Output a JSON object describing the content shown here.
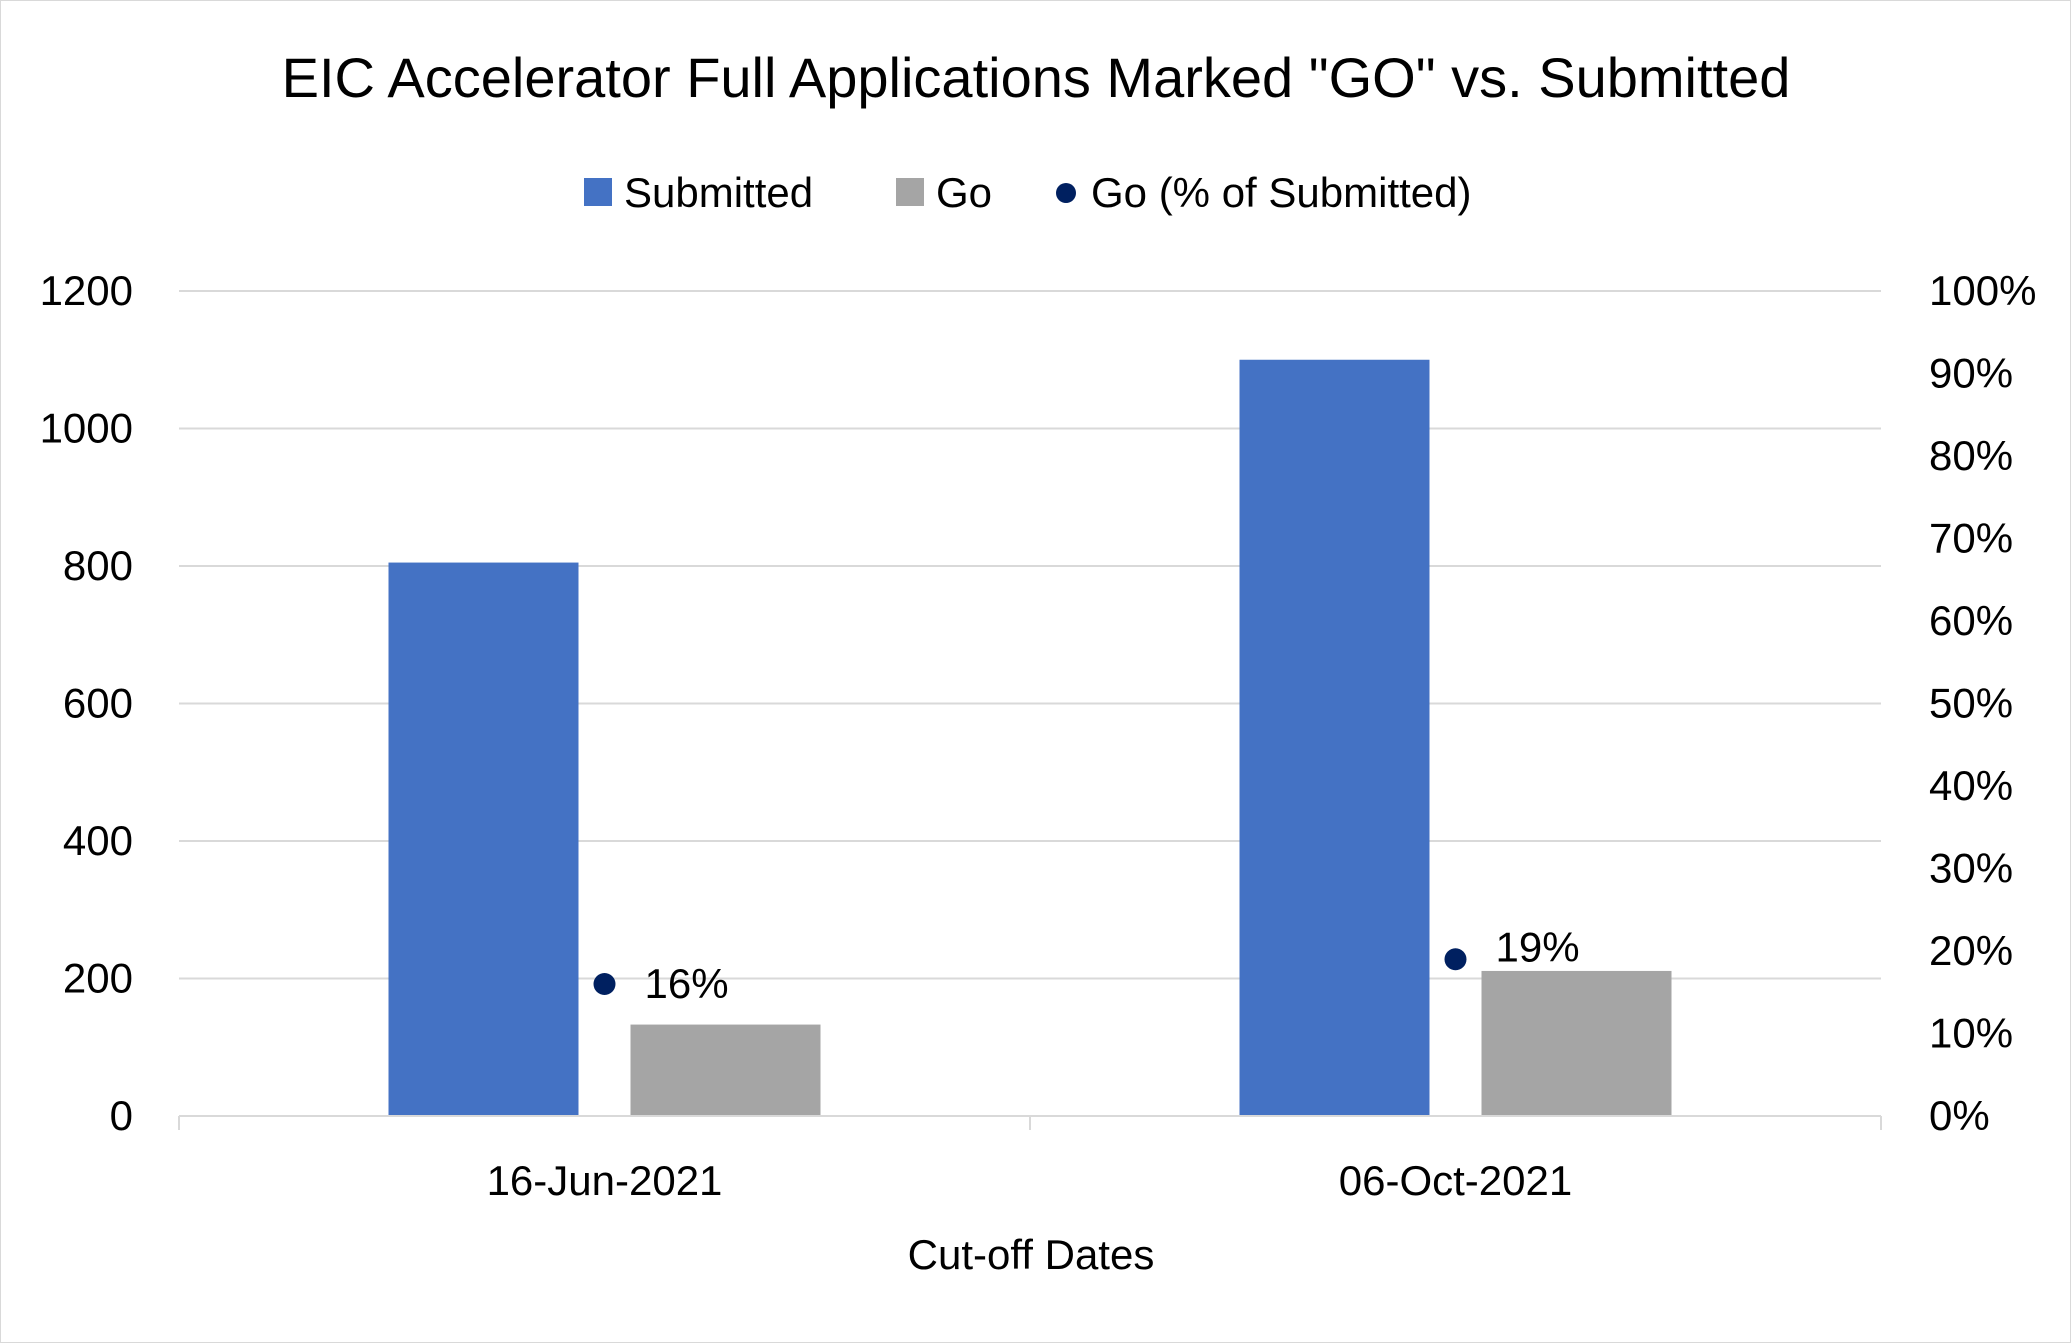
{
  "chart_data": {
    "type": "bar",
    "title": "EIC Accelerator Full Applications Marked \"GO\" vs. Submitted",
    "xlabel": "Cut-off Dates",
    "ylabel": "",
    "y2label": "",
    "categories": [
      "16-Jun-2021",
      "06-Oct-2021"
    ],
    "series": [
      {
        "name": "Submitted",
        "kind": "bar",
        "axis": "left",
        "color": "#4472C4",
        "values": [
          805,
          1100
        ]
      },
      {
        "name": "Go",
        "kind": "bar",
        "axis": "left",
        "color": "#A5A5A5",
        "values": [
          133,
          211
        ]
      },
      {
        "name": "Go (% of Submitted)",
        "kind": "point",
        "axis": "right",
        "color": "#002060",
        "values": [
          16,
          19
        ],
        "labels": [
          "16%",
          "19%"
        ]
      }
    ],
    "ylim": [
      0,
      1200
    ],
    "y_ticks": [
      "0",
      "200",
      "400",
      "600",
      "800",
      "1000",
      "1200"
    ],
    "y2lim": [
      0,
      100
    ],
    "y2_ticks": [
      "0%",
      "10%",
      "20%",
      "30%",
      "40%",
      "50%",
      "60%",
      "70%",
      "80%",
      "90%",
      "100%"
    ],
    "grid": true,
    "legend_position": "top"
  }
}
